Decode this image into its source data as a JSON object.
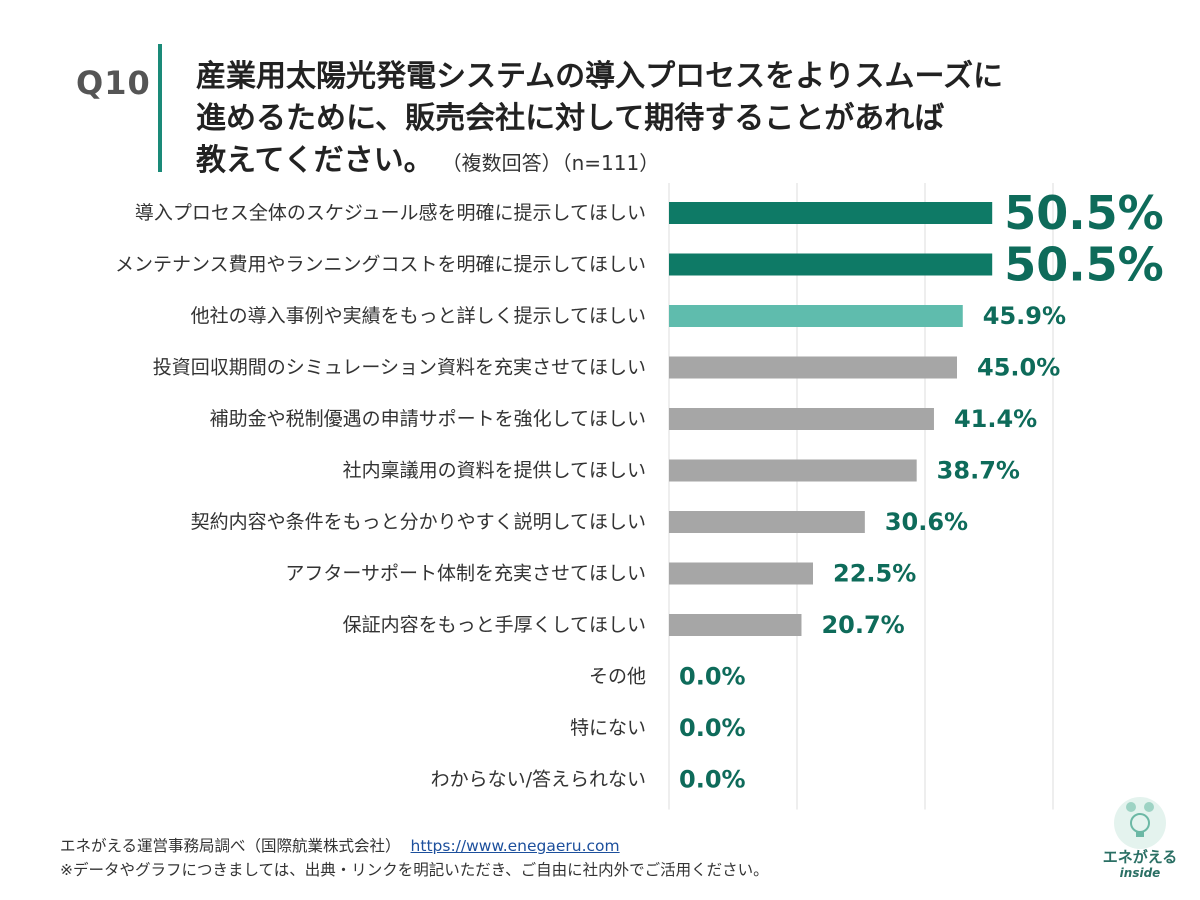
{
  "header": {
    "question_number": "Q10",
    "question_lines": [
      "産業用太陽光発電システムの導入プロセスをよりスムーズに",
      "進めるために、販売会社に対して期待することがあれば",
      "教えてください。"
    ],
    "question_note": "（複数回答）（n=111）"
  },
  "chart_data": {
    "type": "bar",
    "orientation": "horizontal",
    "categories": [
      "導入プロセス全体のスケジュール感を明確に提示してほしい",
      "メンテナンス費用やランニングコストを明確に提示してほしい",
      "他社の導入事例や実績をもっと詳しく提示してほしい",
      "投資回収期間のシミュレーション資料を充実させてほしい",
      "補助金や税制優遇の申請サポートを強化してほしい",
      "社内稟議用の資料を提供してほしい",
      "契約内容や条件をもっと分かりやすく説明してほしい",
      "アフターサポート体制を充実させてほしい",
      "保証内容をもっと手厚くしてほしい",
      "その他",
      "特にない",
      "わからない/答えられない"
    ],
    "values": [
      50.5,
      50.5,
      45.9,
      45.0,
      41.4,
      38.7,
      30.6,
      22.5,
      20.7,
      0.0,
      0.0,
      0.0
    ],
    "value_labels": [
      "50.5%",
      "50.5%",
      "45.9%",
      "45.0%",
      "41.4%",
      "38.7%",
      "30.6%",
      "22.5%",
      "20.7%",
      "0.0%",
      "0.0%",
      "0.0%"
    ],
    "xlim": [
      0,
      60
    ],
    "grid": true,
    "colors": {
      "top": "#0e7a66",
      "second": "#5fbcad",
      "other": "#a6a6a6",
      "label": "#0e6b5a",
      "grid": "#dddddd"
    }
  },
  "footer": {
    "source": "エネがえる運営事務局調べ（国際航業株式会社）",
    "url": "https://www.enegaeru.com",
    "note": "※データやグラフにつきましては、出典・リンクを明記いただき、ご自由に社内外でご活用ください。"
  },
  "logo": {
    "text": "エネがえる",
    "sub": "inside"
  }
}
